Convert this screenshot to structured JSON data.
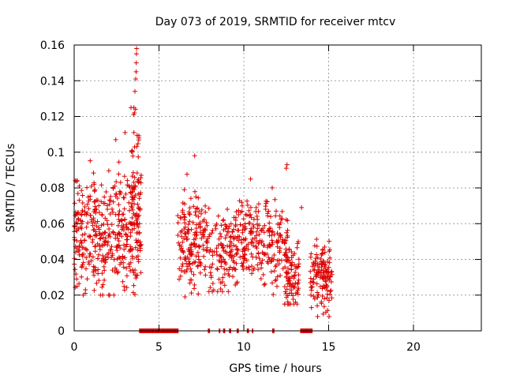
{
  "chart_data": {
    "type": "scatter",
    "title": "Day 073 of 2019, SRMTID for receiver mtcv",
    "xlabel": "GPS time / hours",
    "ylabel": "SRMTID / TECUs",
    "xlim": [
      0,
      24
    ],
    "ylim": [
      0,
      0.16
    ],
    "x_ticks": [
      0,
      5,
      10,
      15,
      20
    ],
    "x_tick_labels": [
      "0",
      "5",
      "10",
      "15",
      "20"
    ],
    "y_ticks": [
      0,
      0.02,
      0.04,
      0.06,
      0.08,
      0.1,
      0.12,
      0.14,
      0.16
    ],
    "y_tick_labels": [
      "0",
      "0.02",
      "0.04",
      "0.06",
      "0.08",
      "0.1",
      "0.12",
      "0.14",
      "0.16"
    ],
    "grid": true,
    "marker": "+",
    "marker_color": "#dd0000",
    "series": [
      {
        "name": "SRMTID",
        "clusters": [
          {
            "x": [
              0.0,
              3.95
            ],
            "y_mean": 0.055,
            "y_spread": 0.016,
            "y_min": 0.02,
            "y_max": 0.112,
            "count": 420
          },
          {
            "x": [
              3.3,
              3.95
            ],
            "y_mean": 0.085,
            "y_spread": 0.02,
            "y_min": 0.06,
            "y_max": 0.125,
            "count": 50
          },
          {
            "x": [
              6.1,
              7.9
            ],
            "y_mean": 0.05,
            "y_spread": 0.013,
            "y_min": 0.019,
            "y_max": 0.098,
            "count": 170
          },
          {
            "x": [
              7.9,
              9.1
            ],
            "y_mean": 0.042,
            "y_spread": 0.011,
            "y_min": 0.022,
            "y_max": 0.07,
            "count": 80
          },
          {
            "x": [
              9.1,
              12.6
            ],
            "y_mean": 0.05,
            "y_spread": 0.012,
            "y_min": 0.018,
            "y_max": 0.085,
            "count": 280
          },
          {
            "x": [
              12.4,
              13.3
            ],
            "y_mean": 0.033,
            "y_spread": 0.012,
            "y_min": 0.015,
            "y_max": 0.093,
            "count": 90
          },
          {
            "x": [
              13.9,
              15.2
            ],
            "y_mean": 0.03,
            "y_spread": 0.01,
            "y_min": 0.008,
            "y_max": 0.06,
            "count": 130
          }
        ],
        "highlights": [
          {
            "x": 3.55,
            "y": 0.122
          },
          {
            "x": 3.62,
            "y": 0.124
          },
          {
            "x": 3.58,
            "y": 0.134
          },
          {
            "x": 3.63,
            "y": 0.141
          },
          {
            "x": 3.65,
            "y": 0.145
          },
          {
            "x": 3.66,
            "y": 0.15
          },
          {
            "x": 3.67,
            "y": 0.155
          },
          {
            "x": 3.68,
            "y": 0.158
          },
          {
            "x": 3.5,
            "y": 0.121
          },
          {
            "x": 3.52,
            "y": 0.111
          },
          {
            "x": 3.0,
            "y": 0.111
          },
          {
            "x": 2.45,
            "y": 0.107
          },
          {
            "x": 3.82,
            "y": 0.108
          },
          {
            "x": 0.65,
            "y": 0.021
          },
          {
            "x": 14.35,
            "y": 0.008
          },
          {
            "x": 12.55,
            "y": 0.093
          },
          {
            "x": 12.5,
            "y": 0.091
          },
          {
            "x": 7.1,
            "y": 0.098
          },
          {
            "x": 10.4,
            "y": 0.085
          },
          {
            "x": 13.4,
            "y": 0.069
          }
        ],
        "zero_segments": [
          [
            3.85,
            6.15
          ],
          [
            7.9,
            8.0
          ],
          [
            8.55,
            8.6
          ],
          [
            8.8,
            8.9
          ],
          [
            9.15,
            9.25
          ],
          [
            9.6,
            9.7
          ],
          [
            10.2,
            10.3
          ],
          [
            10.5,
            10.55
          ],
          [
            11.7,
            11.8
          ],
          [
            13.35,
            14.05
          ]
        ]
      }
    ]
  }
}
